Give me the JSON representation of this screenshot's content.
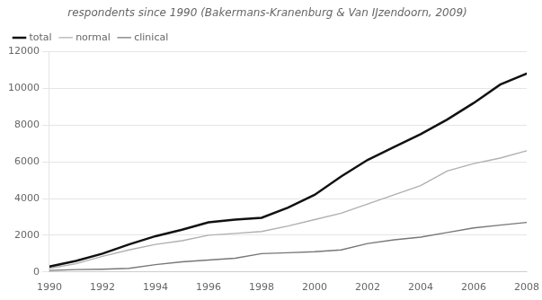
{
  "chart_data": {
    "type": "line",
    "title": "respondents since 1990 (Bakermans-Kranenburg & Van IJzendoorn, 2009)",
    "x": [
      1990,
      1991,
      1992,
      1993,
      1994,
      1995,
      1996,
      1997,
      1998,
      1999,
      2000,
      2001,
      2002,
      2003,
      2004,
      2005,
      2006,
      2007,
      2008
    ],
    "series": [
      {
        "name": "total",
        "color": "#111111",
        "values": [
          300,
          600,
          1000,
          1500,
          1950,
          2300,
          2700,
          2850,
          2950,
          3500,
          4200,
          5200,
          6100,
          6800,
          7500,
          8300,
          9200,
          10200,
          10800
        ]
      },
      {
        "name": "normal",
        "color": "#b0b0b0",
        "values": [
          200,
          450,
          850,
          1200,
          1500,
          1700,
          2000,
          2100,
          2200,
          2500,
          2850,
          3200,
          3700,
          4200,
          4700,
          5500,
          5900,
          6200,
          6600
        ]
      },
      {
        "name": "clinical",
        "color": "#777777",
        "values": [
          80,
          130,
          150,
          200,
          400,
          550,
          650,
          750,
          1000,
          1050,
          1100,
          1200,
          1550,
          1750,
          1900,
          2150,
          2400,
          2550,
          2700
        ]
      }
    ],
    "xlim": [
      1990,
      2008
    ],
    "xticks": [
      1990,
      1992,
      1994,
      1996,
      1998,
      2000,
      2002,
      2004,
      2006,
      2008
    ],
    "ylim": [
      0,
      12000
    ],
    "yticks": [
      0,
      2000,
      4000,
      6000,
      8000,
      10000,
      12000
    ],
    "grid": "y",
    "legend": "upper left"
  }
}
